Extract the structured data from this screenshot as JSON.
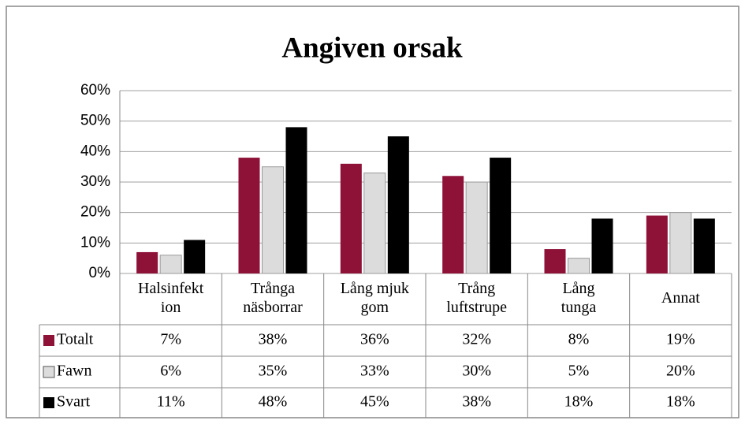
{
  "chart_data": {
    "type": "bar",
    "title": "Angiven orsak",
    "categories": [
      [
        "Halsinfekt",
        "ion"
      ],
      [
        "Trånga",
        "näsborrar"
      ],
      [
        "Lång mjuk",
        "gom"
      ],
      [
        "Trång",
        "luftstrupe"
      ],
      [
        "Lång",
        "tunga"
      ],
      [
        "Annat"
      ]
    ],
    "series": [
      {
        "name": "Totalt",
        "color": "#8e1238",
        "values": [
          7,
          38,
          36,
          32,
          8,
          19
        ],
        "value_labels": [
          "7%",
          "38%",
          "36%",
          "32%",
          "8%",
          "19%"
        ]
      },
      {
        "name": "Fawn",
        "color": "#dcdcdc",
        "values": [
          6,
          35,
          33,
          30,
          5,
          20
        ],
        "value_labels": [
          "6%",
          "35%",
          "33%",
          "30%",
          "5%",
          "20%"
        ]
      },
      {
        "name": "Svart",
        "color": "#000000",
        "values": [
          11,
          48,
          45,
          38,
          18,
          18
        ],
        "value_labels": [
          "11%",
          "48%",
          "45%",
          "38%",
          "18%",
          "18%"
        ]
      }
    ],
    "ylim": [
      0,
      60
    ],
    "yticks": [
      {
        "value": 0,
        "label": "0%"
      },
      {
        "value": 10,
        "label": "10%"
      },
      {
        "value": 20,
        "label": "20%"
      },
      {
        "value": 30,
        "label": "30%"
      },
      {
        "value": 40,
        "label": "40%"
      },
      {
        "value": 50,
        "label": "50%"
      },
      {
        "value": 60,
        "label": "60%"
      }
    ],
    "grid": true
  }
}
